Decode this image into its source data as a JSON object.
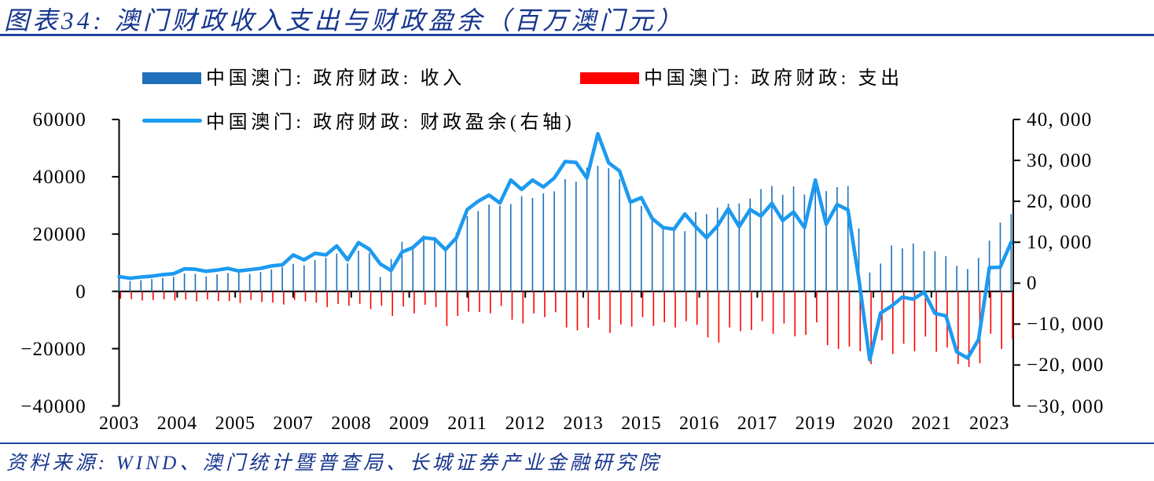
{
  "title": "图表34:  澳门财政收入支出与财政盈余（百万澳门元）",
  "source_note": "资料来源:  WIND、澳门统计暨普查局、长城证券产业金融研究院",
  "colors": {
    "heading_blue": "#17368E",
    "rule_blue": "#1E46A0",
    "revenue_bar_blue": "#1F6FBA",
    "expenditure_bar_red": "#FF0000",
    "surplus_line_blue": "#1C9AF0",
    "axis_black": "#000000"
  },
  "legend": {
    "revenue": "中国澳门: 政府财政: 收入",
    "expenditure": "中国澳门: 政府财政: 支出",
    "surplus": "中国澳门: 政府财政: 财政盈余(右轴)"
  },
  "chart_data": {
    "type": "bar",
    "note": "quarterly data, millions of MOP; revenue and expenditure bars on left axis (expenditure plotted as negative), fiscal surplus line on right axis",
    "x": [
      "2003Q1",
      "2003Q2",
      "2003Q3",
      "2003Q4",
      "2004Q1",
      "2004Q2",
      "2004Q3",
      "2004Q4",
      "2005Q1",
      "2005Q2",
      "2005Q3",
      "2005Q4",
      "2006Q1",
      "2006Q2",
      "2006Q3",
      "2006Q4",
      "2007Q1",
      "2007Q2",
      "2007Q3",
      "2007Q4",
      "2008Q1",
      "2008Q2",
      "2008Q3",
      "2008Q4",
      "2009Q1",
      "2009Q2",
      "2009Q3",
      "2009Q4",
      "2010Q1",
      "2010Q2",
      "2010Q3",
      "2010Q4",
      "2011Q1",
      "2011Q2",
      "2011Q3",
      "2011Q4",
      "2012Q1",
      "2012Q2",
      "2012Q3",
      "2012Q4",
      "2013Q1",
      "2013Q2",
      "2013Q3",
      "2013Q4",
      "2014Q1",
      "2014Q2",
      "2014Q3",
      "2014Q4",
      "2015Q1",
      "2015Q2",
      "2015Q3",
      "2015Q4",
      "2016Q1",
      "2016Q2",
      "2016Q3",
      "2016Q4",
      "2017Q1",
      "2017Q2",
      "2017Q3",
      "2017Q4",
      "2018Q1",
      "2018Q2",
      "2018Q3",
      "2018Q4",
      "2019Q1",
      "2019Q2",
      "2019Q3",
      "2019Q4",
      "2020Q1",
      "2020Q2",
      "2020Q3",
      "2020Q4",
      "2021Q1",
      "2021Q2",
      "2021Q3",
      "2021Q4",
      "2022Q1",
      "2022Q2",
      "2022Q3",
      "2022Q4",
      "2023Q1",
      "2023Q2",
      "2023Q3"
    ],
    "series": [
      {
        "name": "中国澳门: 政府财政: 收入",
        "type": "bar",
        "axis": "left",
        "values": [
          4400,
          3600,
          3900,
          4300,
          4700,
          5100,
          6200,
          6100,
          5200,
          5900,
          6400,
          6500,
          6100,
          6800,
          7600,
          8500,
          9600,
          9100,
          10900,
          11700,
          13200,
          9800,
          14200,
          13300,
          5000,
          11300,
          17300,
          15400,
          19500,
          18900,
          14100,
          20500,
          26300,
          28000,
          30300,
          29900,
          30500,
          33200,
          32600,
          34200,
          34900,
          39200,
          38300,
          43200,
          43800,
          43000,
          39200,
          31700,
          29800,
          24800,
          21700,
          21400,
          21000,
          27700,
          27000,
          29200,
          30600,
          30700,
          32400,
          35700,
          36800,
          33700,
          36600,
          33800,
          39000,
          35000,
          36400,
          36700,
          22000,
          6600,
          9700,
          16000,
          15000,
          16700,
          14100,
          14000,
          12300,
          8900,
          7800,
          11700,
          17700,
          24000,
          27000
        ]
      },
      {
        "name": "中国澳门: 政府财政: 支出",
        "type": "bar",
        "axis": "left",
        "values": [
          -2600,
          -2700,
          -3200,
          -3000,
          -2800,
          -3200,
          -2900,
          -3500,
          -2800,
          -3400,
          -3400,
          -4100,
          -3000,
          -3700,
          -3900,
          -4600,
          -3000,
          -3500,
          -3900,
          -5500,
          -4400,
          -5000,
          -4400,
          -6200,
          -5000,
          -8600,
          -5300,
          -7700,
          -4700,
          -5500,
          -12100,
          -8600,
          -7100,
          -7200,
          -7700,
          -5100,
          -9900,
          -11200,
          -7700,
          -9000,
          -7300,
          -12600,
          -13600,
          -12700,
          -9900,
          -14500,
          -11500,
          -12300,
          -9000,
          -12100,
          -10800,
          -12600,
          -10400,
          -11700,
          -16100,
          -17900,
          -12600,
          -13900,
          -13500,
          -10400,
          -14800,
          -11200,
          -15700,
          -15200,
          -10800,
          -18800,
          -20100,
          -19300,
          -20900,
          -25400,
          -17100,
          -21900,
          -18300,
          -20900,
          -15800,
          -21100,
          -19600,
          -25400,
          -26400,
          -25100,
          -14800,
          -20100,
          -16600
        ]
      },
      {
        "name": "中国澳门: 政府财政: 财政盈余(右轴)",
        "type": "line",
        "axis": "right",
        "values": [
          1600,
          1200,
          1500,
          1700,
          2100,
          2300,
          3500,
          3400,
          2900,
          3200,
          3600,
          3000,
          3300,
          3600,
          4200,
          4500,
          6900,
          5700,
          7300,
          6900,
          9100,
          5700,
          9900,
          8300,
          4700,
          3100,
          7600,
          8700,
          11100,
          10800,
          8200,
          11100,
          18000,
          20000,
          21500,
          19600,
          25200,
          22900,
          25200,
          23500,
          25700,
          29700,
          29500,
          25700,
          36500,
          29400,
          27400,
          19800,
          20900,
          15800,
          13600,
          13200,
          16900,
          13800,
          11100,
          14000,
          18200,
          13800,
          18000,
          16400,
          19500,
          15300,
          17400,
          13600,
          25200,
          14400,
          19200,
          17900,
          1100,
          -18700,
          -7300,
          -5600,
          -3400,
          -3900,
          -2200,
          -7400,
          -8000,
          -16800,
          -18300,
          -13800,
          3800,
          3900,
          10000
        ]
      }
    ],
    "left_axis": {
      "min": -40000,
      "max": 60000,
      "step": 20000,
      "tick_labels": [
        "60000",
        "40000",
        "20000",
        "0",
        "−20000",
        "−40000"
      ]
    },
    "right_axis": {
      "min": -30000,
      "max": 40000,
      "step": 10000,
      "tick_labels": [
        "40, 000",
        "30, 000",
        "20, 000",
        "10, 000",
        "0",
        "−10, 000",
        "−20, 000",
        "−30, 000"
      ]
    },
    "x_tick_labels": [
      "2003",
      "2004",
      "2005",
      "2007",
      "2008",
      "2009",
      "2011",
      "2012",
      "2013",
      "2015",
      "2016",
      "2017",
      "2019",
      "2020",
      "2021",
      "2023"
    ],
    "grid": false,
    "legend_position": "top"
  }
}
